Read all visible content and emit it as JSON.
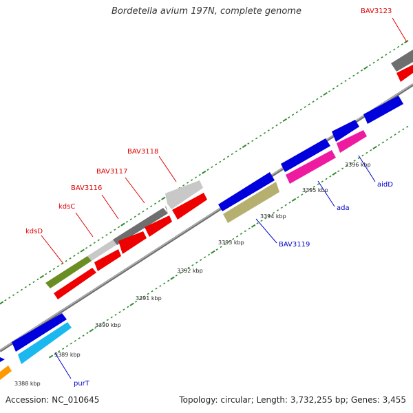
{
  "title": "Bordetella avium 197N, complete genome",
  "footer": {
    "accession": "Accession: NC_010645",
    "topology": "Topology: circular; Length: 3,732,255 bp; Genes: 3,455"
  },
  "colors": {
    "background": "#ffffff",
    "backbone": "#8c8c8c",
    "tick": "#2e8b2e",
    "upper_label": "#dd0000",
    "lower_label": "#0000cc",
    "cds_red": "#ee0000",
    "cds_blue": "#0000dd",
    "cds_olive": "#6b8e23",
    "cds_silver": "#c8c8c8",
    "cds_dark_gray": "#6e6e6e",
    "cds_khaki": "#b5b070",
    "cds_magenta": "#ee1aa0",
    "cds_cyan": "#1ab8ee",
    "cds_orange": "#ff9900"
  },
  "scale_labels": [
    "3388 kbp",
    "3389 kbp",
    "3390 kbp",
    "3391 kbp",
    "3392 kbp",
    "3393 kbp",
    "3394 kbp",
    "3395 kbp",
    "3396 kbp"
  ],
  "upper_gene_labels": [
    "kdsD",
    "kdsC",
    "BAV3116",
    "BAV3117",
    "BAV3118",
    "BAV3123"
  ],
  "lower_gene_labels": [
    "purT",
    "BAV3119",
    "ada",
    "aidD"
  ]
}
